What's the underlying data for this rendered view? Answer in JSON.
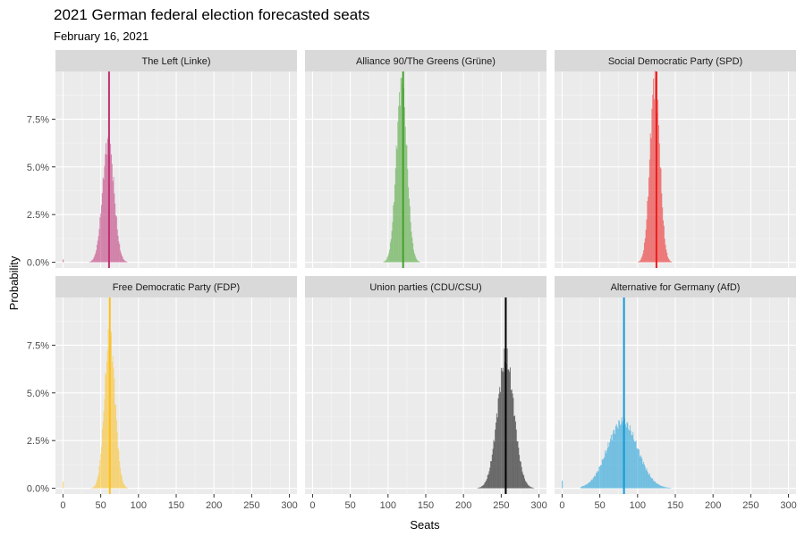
{
  "chart_data": {
    "type": "histogram-facets",
    "title": "2021 German federal election forecasted seats",
    "subtitle": "February 16, 2021",
    "xlabel": "Seats",
    "ylabel": "Probability",
    "xlim": [
      -10,
      310
    ],
    "ylim": [
      -0.003,
      0.1
    ],
    "x_ticks": [
      0,
      50,
      100,
      150,
      200,
      250,
      300
    ],
    "x_tick_labels": [
      "0",
      "50",
      "100",
      "150",
      "200",
      "250",
      "300"
    ],
    "y_ticks": [
      0,
      0.025,
      0.05,
      0.075
    ],
    "y_tick_labels": [
      "0.0%",
      "2.5%",
      "5.0%",
      "7.5%"
    ],
    "layout": {
      "rows": 2,
      "cols": 3
    },
    "panels": [
      {
        "name": "The Left (Linke)",
        "color": "#be3075",
        "median": 61,
        "mean": 60,
        "sd": 7.5,
        "peak": 0.064,
        "min": 25,
        "max": 115,
        "zero_prob": 0.0015
      },
      {
        "name": "Alliance 90/The Greens (Grüne)",
        "color": "#46a22e",
        "median": 120,
        "mean": 118,
        "sd": 7,
        "peak": 0.094,
        "min": 85,
        "max": 155,
        "zero_prob": 0
      },
      {
        "name": "Social Democratic Party (SPD)",
        "color": "#ee1c1c",
        "median": 125,
        "mean": 123,
        "sd": 6.5,
        "peak": 0.096,
        "min": 90,
        "max": 160,
        "zero_prob": 0
      },
      {
        "name": "Free Democratic Party (FDP)",
        "color": "#fbbf1c",
        "median": 62,
        "mean": 62,
        "sd": 7,
        "peak": 0.08,
        "min": 30,
        "max": 105,
        "zero_prob": 0.0035
      },
      {
        "name": "Union parties (CDU/CSU)",
        "color": "#000000",
        "median": 256,
        "mean": 256,
        "sd": 11,
        "peak": 0.068,
        "min": 215,
        "max": 300,
        "zero_prob": 0
      },
      {
        "name": "Alternative for Germany (AfD)",
        "color": "#129ad9",
        "median": 82,
        "mean": 80,
        "sd": 20,
        "peak": 0.035,
        "min": 25,
        "max": 160,
        "zero_prob": 0.004
      }
    ]
  }
}
